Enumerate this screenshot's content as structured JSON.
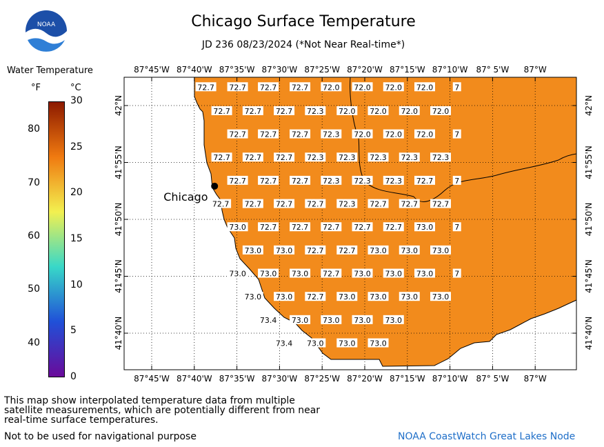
{
  "header": {
    "title": "Chicago Surface Temperature",
    "subtitle": "JD 236 08/23/2024 (*Not Near Real-time*)"
  },
  "logo": {
    "text": "NOAA",
    "icon": "noaa-logo-icon"
  },
  "legend": {
    "title": "Water Temperature",
    "unit_f": "°F",
    "unit_c": "°C",
    "ticks_f": [
      {
        "label": "80",
        "frac": 0.103
      },
      {
        "label": "70",
        "frac": 0.297
      },
      {
        "label": "60",
        "frac": 0.49
      },
      {
        "label": "50",
        "frac": 0.683
      },
      {
        "label": "40",
        "frac": 0.877
      }
    ],
    "ticks_c": [
      {
        "label": "30",
        "frac": 0.0
      },
      {
        "label": "25",
        "frac": 0.167
      },
      {
        "label": "20",
        "frac": 0.333
      },
      {
        "label": "15",
        "frac": 0.5
      },
      {
        "label": "10",
        "frac": 0.667
      },
      {
        "label": "5",
        "frac": 0.833
      },
      {
        "label": "0",
        "frac": 1.0
      }
    ],
    "colors": [
      "#8c1a00",
      "#f07a10",
      "#f2f050",
      "#38d8c8",
      "#2050d8",
      "#6a0a9a"
    ]
  },
  "map": {
    "lon_labels": [
      "87°45'W",
      "87°40'W",
      "87°35'W",
      "87°30'W",
      "87°25'W",
      "87°20'W",
      "87°15'W",
      "87°10'W",
      "87° 5'W",
      "87°W"
    ],
    "lat_labels": [
      "42°N",
      "41°55'N",
      "41°50'N",
      "41°45'N",
      "41°40'N"
    ],
    "city": {
      "name": "Chicago",
      "lon": -87.627,
      "lat": 41.882
    },
    "water_color": "#f28b1c",
    "grid_values": [
      {
        "lon": -87.644,
        "lat": 42.027,
        "value": "72.7"
      },
      {
        "lon": -87.582,
        "lat": 42.027,
        "value": "72.7"
      },
      {
        "lon": -87.522,
        "lat": 42.027,
        "value": "72.7"
      },
      {
        "lon": -87.46,
        "lat": 42.027,
        "value": "72.7"
      },
      {
        "lon": -87.399,
        "lat": 42.027,
        "value": "72.0"
      },
      {
        "lon": -87.338,
        "lat": 42.027,
        "value": "72.0"
      },
      {
        "lon": -87.277,
        "lat": 42.027,
        "value": "72.0"
      },
      {
        "lon": -87.216,
        "lat": 42.027,
        "value": "72.0"
      },
      {
        "lon": -87.153,
        "lat": 42.027,
        "value": "7"
      },
      {
        "lon": -87.613,
        "lat": 41.992,
        "value": "72.7"
      },
      {
        "lon": -87.552,
        "lat": 41.992,
        "value": "72.7"
      },
      {
        "lon": -87.491,
        "lat": 41.992,
        "value": "72.7"
      },
      {
        "lon": -87.43,
        "lat": 41.992,
        "value": "72.3"
      },
      {
        "lon": -87.368,
        "lat": 41.992,
        "value": "72.0"
      },
      {
        "lon": -87.307,
        "lat": 41.992,
        "value": "72.0"
      },
      {
        "lon": -87.246,
        "lat": 41.992,
        "value": "72.0"
      },
      {
        "lon": -87.185,
        "lat": 41.992,
        "value": "72.0"
      },
      {
        "lon": -87.582,
        "lat": 41.958,
        "value": "72.7"
      },
      {
        "lon": -87.522,
        "lat": 41.958,
        "value": "72.7"
      },
      {
        "lon": -87.46,
        "lat": 41.958,
        "value": "72.7"
      },
      {
        "lon": -87.399,
        "lat": 41.958,
        "value": "72.3"
      },
      {
        "lon": -87.338,
        "lat": 41.958,
        "value": "72.0"
      },
      {
        "lon": -87.277,
        "lat": 41.958,
        "value": "72.0"
      },
      {
        "lon": -87.216,
        "lat": 41.958,
        "value": "72.0"
      },
      {
        "lon": -87.153,
        "lat": 41.958,
        "value": "7"
      },
      {
        "lon": -87.613,
        "lat": 41.924,
        "value": "72.7"
      },
      {
        "lon": -87.552,
        "lat": 41.924,
        "value": "72.7"
      },
      {
        "lon": -87.491,
        "lat": 41.924,
        "value": "72.7"
      },
      {
        "lon": -87.43,
        "lat": 41.924,
        "value": "72.3"
      },
      {
        "lon": -87.368,
        "lat": 41.924,
        "value": "72.3"
      },
      {
        "lon": -87.307,
        "lat": 41.924,
        "value": "72.3"
      },
      {
        "lon": -87.246,
        "lat": 41.924,
        "value": "72.3"
      },
      {
        "lon": -87.185,
        "lat": 41.924,
        "value": "72.3"
      },
      {
        "lon": -87.582,
        "lat": 41.89,
        "value": "72.7"
      },
      {
        "lon": -87.522,
        "lat": 41.89,
        "value": "72.7"
      },
      {
        "lon": -87.46,
        "lat": 41.89,
        "value": "72.7"
      },
      {
        "lon": -87.399,
        "lat": 41.89,
        "value": "72.3"
      },
      {
        "lon": -87.338,
        "lat": 41.89,
        "value": "72.3"
      },
      {
        "lon": -87.277,
        "lat": 41.89,
        "value": "72.3"
      },
      {
        "lon": -87.216,
        "lat": 41.89,
        "value": "72.7"
      },
      {
        "lon": -87.153,
        "lat": 41.89,
        "value": "7"
      },
      {
        "lon": -87.615,
        "lat": 41.856,
        "value": "72.7"
      },
      {
        "lon": -87.552,
        "lat": 41.856,
        "value": "72.7"
      },
      {
        "lon": -87.491,
        "lat": 41.856,
        "value": "72.7"
      },
      {
        "lon": -87.43,
        "lat": 41.856,
        "value": "72.7"
      },
      {
        "lon": -87.368,
        "lat": 41.856,
        "value": "72.3"
      },
      {
        "lon": -87.307,
        "lat": 41.856,
        "value": "72.7"
      },
      {
        "lon": -87.246,
        "lat": 41.856,
        "value": "72.7"
      },
      {
        "lon": -87.185,
        "lat": 41.856,
        "value": "72.7"
      },
      {
        "lon": -87.582,
        "lat": 41.822,
        "value": "73.0"
      },
      {
        "lon": -87.522,
        "lat": 41.822,
        "value": "72.7"
      },
      {
        "lon": -87.46,
        "lat": 41.822,
        "value": "72.7"
      },
      {
        "lon": -87.399,
        "lat": 41.822,
        "value": "72.7"
      },
      {
        "lon": -87.338,
        "lat": 41.822,
        "value": "72.7"
      },
      {
        "lon": -87.277,
        "lat": 41.822,
        "value": "72.7"
      },
      {
        "lon": -87.216,
        "lat": 41.822,
        "value": "73.0"
      },
      {
        "lon": -87.153,
        "lat": 41.822,
        "value": "7"
      },
      {
        "lon": -87.552,
        "lat": 41.788,
        "value": "73.0"
      },
      {
        "lon": -87.491,
        "lat": 41.788,
        "value": "73.0"
      },
      {
        "lon": -87.43,
        "lat": 41.788,
        "value": "72.7"
      },
      {
        "lon": -87.368,
        "lat": 41.788,
        "value": "72.7"
      },
      {
        "lon": -87.307,
        "lat": 41.788,
        "value": "73.0"
      },
      {
        "lon": -87.246,
        "lat": 41.788,
        "value": "73.0"
      },
      {
        "lon": -87.185,
        "lat": 41.788,
        "value": "73.0"
      },
      {
        "lon": -87.582,
        "lat": 41.754,
        "value": "73.0"
      },
      {
        "lon": -87.522,
        "lat": 41.754,
        "value": "73.0"
      },
      {
        "lon": -87.46,
        "lat": 41.754,
        "value": "73.0"
      },
      {
        "lon": -87.399,
        "lat": 41.754,
        "value": "72.7"
      },
      {
        "lon": -87.338,
        "lat": 41.754,
        "value": "73.0"
      },
      {
        "lon": -87.277,
        "lat": 41.754,
        "value": "73.0"
      },
      {
        "lon": -87.216,
        "lat": 41.754,
        "value": "73.0"
      },
      {
        "lon": -87.153,
        "lat": 41.754,
        "value": "7"
      },
      {
        "lon": -87.552,
        "lat": 41.72,
        "value": "73.0"
      },
      {
        "lon": -87.491,
        "lat": 41.72,
        "value": "73.0"
      },
      {
        "lon": -87.43,
        "lat": 41.72,
        "value": "72.7"
      },
      {
        "lon": -87.368,
        "lat": 41.72,
        "value": "73.0"
      },
      {
        "lon": -87.307,
        "lat": 41.72,
        "value": "73.0"
      },
      {
        "lon": -87.246,
        "lat": 41.72,
        "value": "73.0"
      },
      {
        "lon": -87.185,
        "lat": 41.72,
        "value": "73.0"
      },
      {
        "lon": -87.522,
        "lat": 41.686,
        "value": "73.4"
      },
      {
        "lon": -87.46,
        "lat": 41.686,
        "value": "73.0"
      },
      {
        "lon": -87.399,
        "lat": 41.686,
        "value": "73.0"
      },
      {
        "lon": -87.338,
        "lat": 41.686,
        "value": "73.0"
      },
      {
        "lon": -87.277,
        "lat": 41.686,
        "value": "73.0"
      },
      {
        "lon": -87.491,
        "lat": 41.652,
        "value": "73.4"
      },
      {
        "lon": -87.43,
        "lat": 41.652,
        "value": "73.0"
      },
      {
        "lon": -87.368,
        "lat": 41.652,
        "value": "73.0"
      },
      {
        "lon": -87.307,
        "lat": 41.652,
        "value": "73.0"
      }
    ]
  },
  "footer": {
    "note": "This map show interpolated temperature data from multiple satellite measurements, which are potentially different from near real-time surface temperatures.",
    "nav_note": "Not to be used for navigational purpose",
    "credit": "NOAA CoastWatch Great Lakes Node"
  }
}
